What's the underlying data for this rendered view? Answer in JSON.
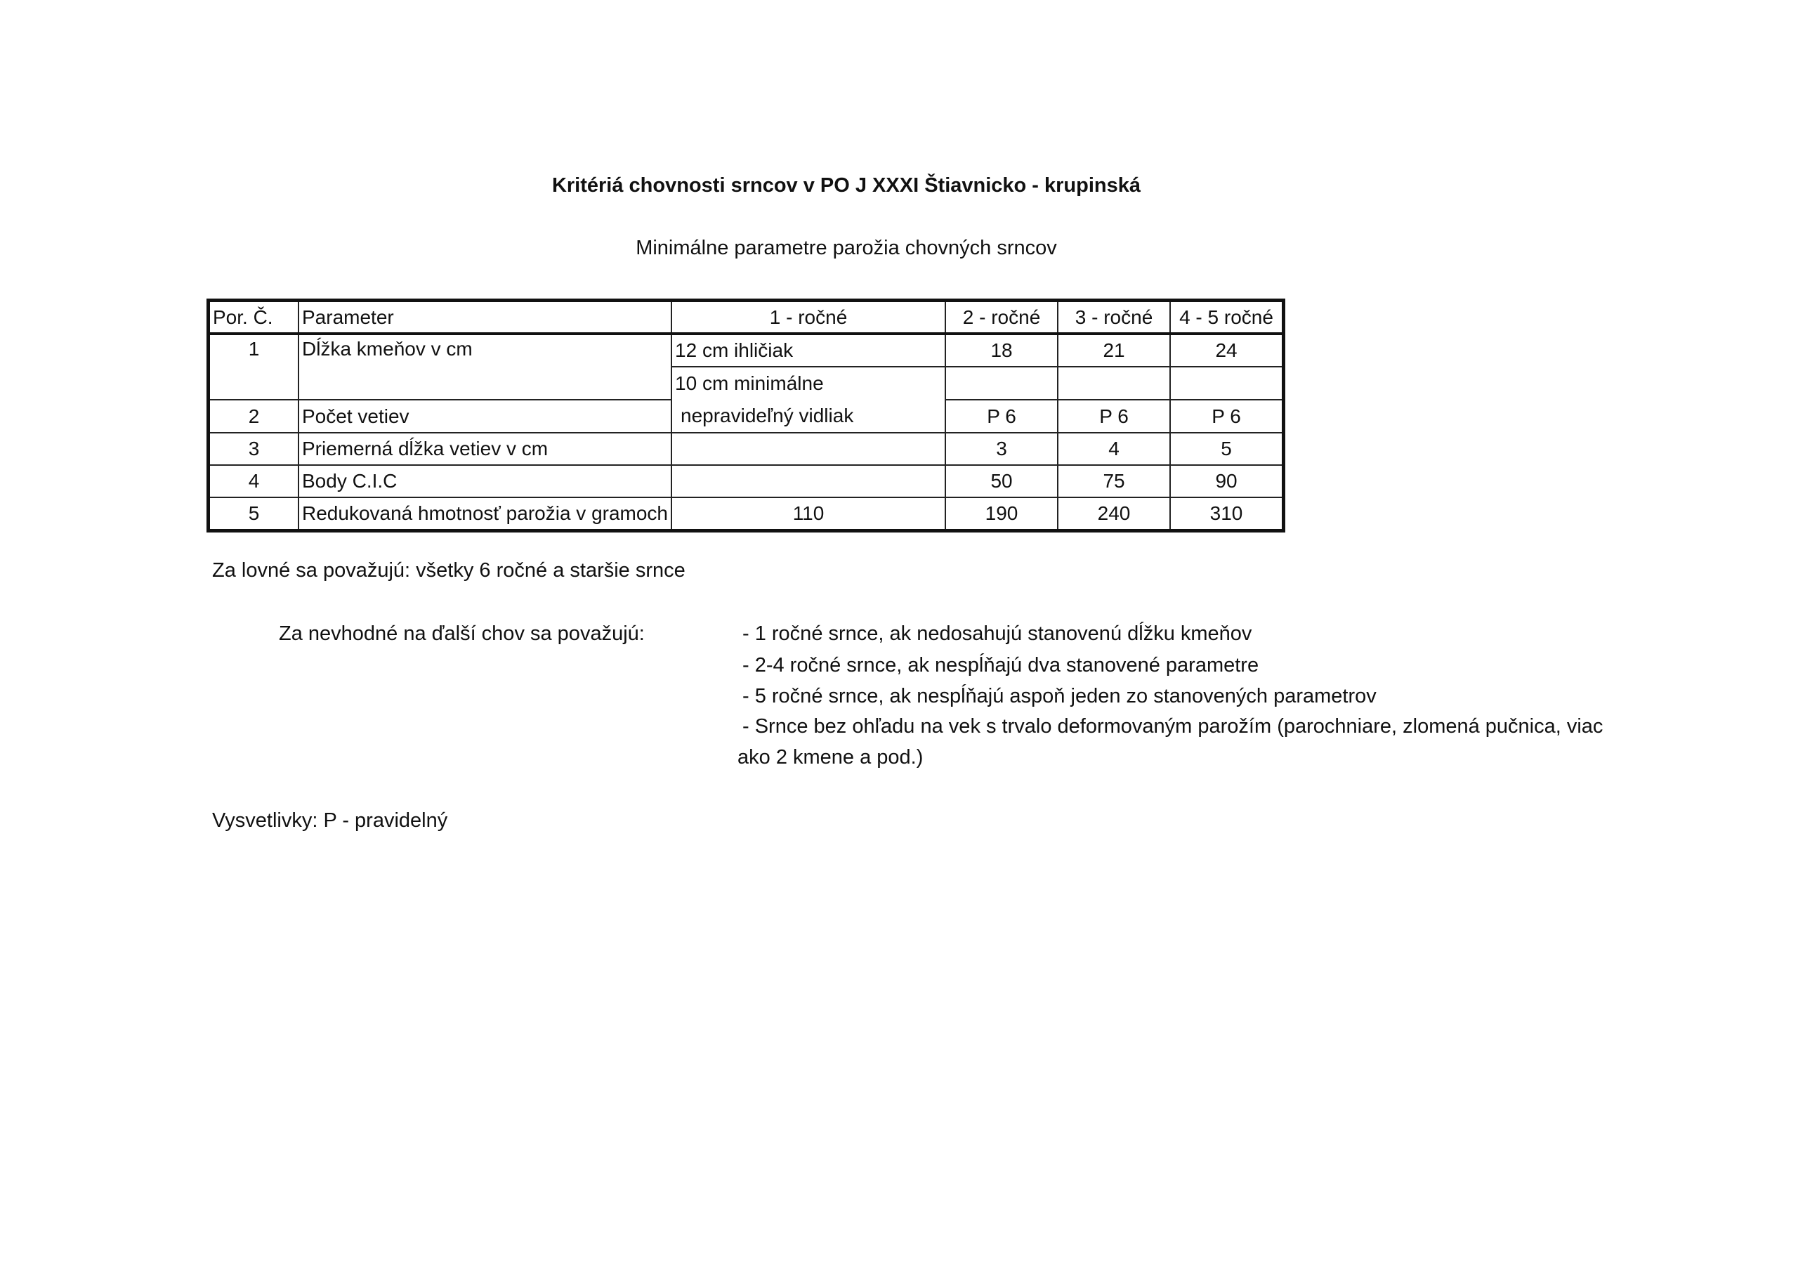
{
  "title": "Kritériá chovnosti srncov v PO J XXXI Štiavnicko - krupinská",
  "subtitle": "Minimálne parametre parožia chovných srncov",
  "table": {
    "headers": [
      "Por. Č.",
      "Parameter",
      "1 - ročné",
      "2 - ročné",
      "3 - ročné",
      "4 - 5 ročné"
    ],
    "rows": [
      {
        "no": "1",
        "param": "Dĺžka kmeňov v cm",
        "y1": "12 cm ihličiak",
        "y2": "18",
        "y3": "21",
        "y45": "24"
      },
      {
        "y1_line1": "10 cm minimálne",
        "y1_line2": "nepravideľný vidliak",
        "y2": "",
        "y3": "",
        "y45": ""
      },
      {
        "no": "2",
        "param": "Počet vetiev",
        "y2": "P 6",
        "y3": "P 6",
        "y45": "P 6"
      },
      {
        "no": "3",
        "param": "Priemerná dĺžka vetiev v cm",
        "y1": "",
        "y2": "3",
        "y3": "4",
        "y45": "5"
      },
      {
        "no": "4",
        "param": "Body C.I.C",
        "y1": "",
        "y2": "50",
        "y3": "75",
        "y45": "90"
      },
      {
        "no": "5",
        "param": "Redukovaná hmotnosť parožia v gramoch",
        "y1": "110",
        "y2": "190",
        "y3": "240",
        "y45": "310"
      }
    ]
  },
  "huntable": "Za lovné sa považujú: všetky 6 ročné a staršie srnce",
  "unsuitable": {
    "label": "Za nevhodné na ďalší chov sa považujú:",
    "items": [
      "- 1 ročné srnce, ak nedosahujú stanovenú dĺžku kmeňov",
      "- 2-4 ročné srnce, ak nespĺňajú dva stanovené parametre",
      "- 5 ročné srnce, ak nespĺňajú aspoň jeden zo stanovených parametrov",
      "- Srnce bez ohľadu na vek s trvalo deformovaným parožím (parochniare, zlomená pučnica, viac",
      "ako 2 kmene a pod.)"
    ]
  },
  "legend": "Vysvetlivky: P - pravidelný"
}
